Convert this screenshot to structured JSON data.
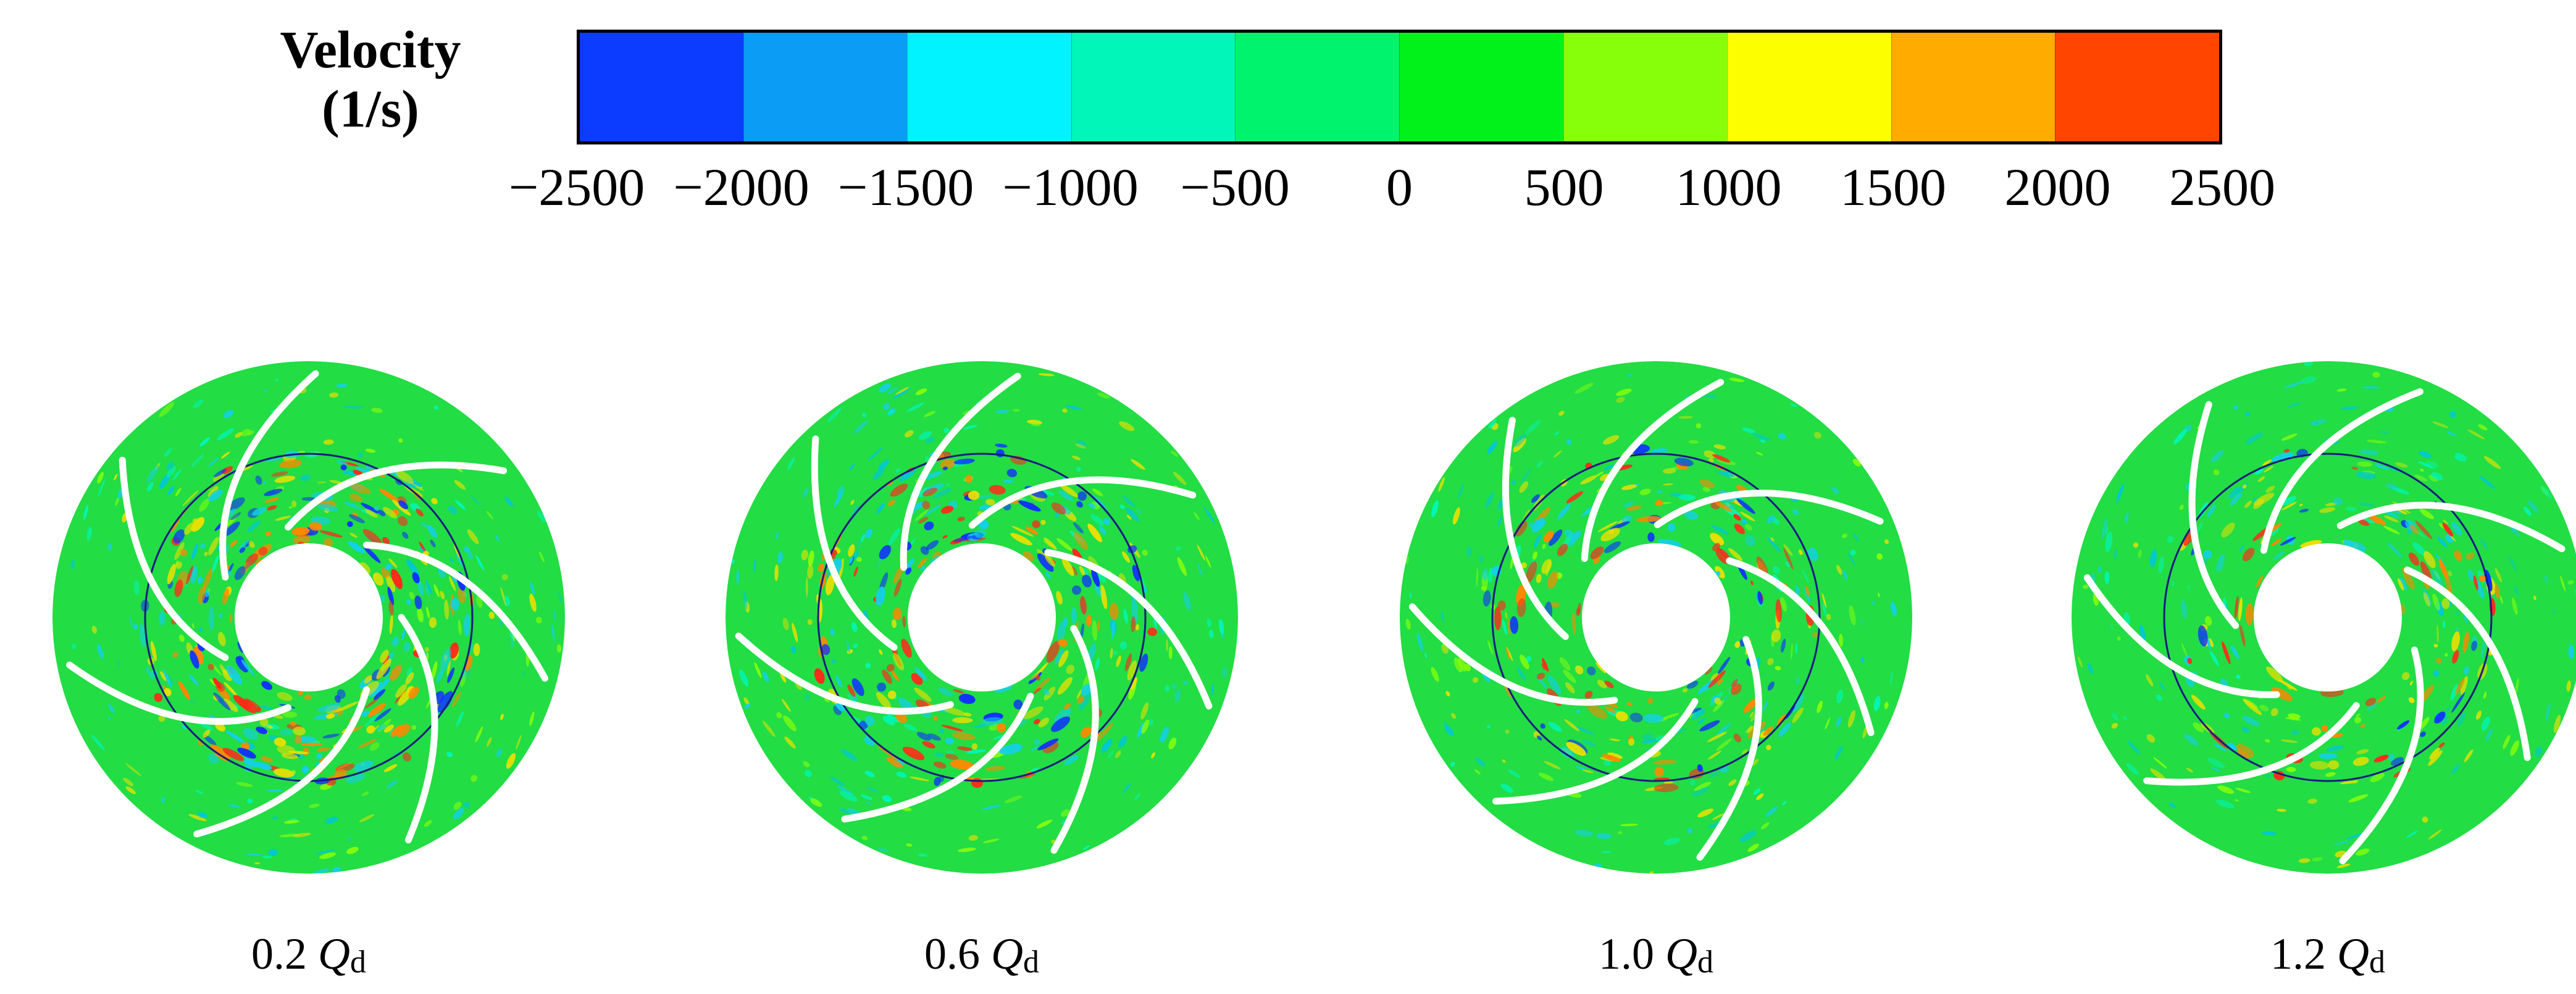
{
  "legend": {
    "title_line1": "Velocity",
    "title_line2": "(1/s)",
    "ticks": [
      "−2500",
      "−2000",
      "−1500",
      "−1000",
      "−500",
      "0",
      "500",
      "1000",
      "1500",
      "2000",
      "2500"
    ],
    "colors": [
      "#0b3cff",
      "#0b9df5",
      "#00f3ff",
      "#00f7b9",
      "#00f36c",
      "#00f21b",
      "#88ff0a",
      "#fdff00",
      "#ffab00",
      "#ff4500"
    ]
  },
  "panels": [
    {
      "coef": "0.2",
      "q": "Q",
      "sub": "d",
      "intensity": 1.0
    },
    {
      "coef": "0.6",
      "q": "Q",
      "sub": "d",
      "intensity": 0.75
    },
    {
      "coef": "1.0",
      "q": "Q",
      "sub": "d",
      "intensity": 0.5
    },
    {
      "coef": "1.2",
      "q": "Q",
      "sub": "d",
      "intensity": 0.3
    }
  ],
  "colors": {
    "field": "#22dd44",
    "ring": "#1a1a80",
    "blade": "#ffffff",
    "hot": "#ff2a1a",
    "cold": "#1030ff",
    "warm": "#e8e000",
    "cyan": "#14d0e8"
  }
}
